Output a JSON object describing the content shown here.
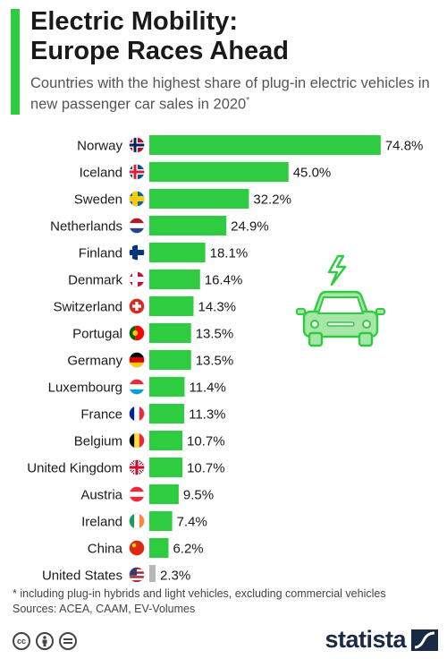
{
  "header": {
    "title_line1": "Electric Mobility:",
    "title_line2": "Europe Races Ahead",
    "subtitle": "Countries with the highest share of plug-in electric vehicles in new passenger car sales in 2020",
    "subtitle_mark": "*"
  },
  "colors": {
    "accent": "#2ecc40",
    "bar": "#2ecc40",
    "bar_highlight": "#b7b7b7",
    "brand": "#1a2a44",
    "car_fill": "#a8e6a8"
  },
  "chart_data": {
    "type": "bar",
    "orientation": "horizontal",
    "value_suffix": "%",
    "categories": [
      "Norway",
      "Iceland",
      "Sweden",
      "Netherlands",
      "Finland",
      "Denmark",
      "Switzerland",
      "Portugal",
      "Germany",
      "Luxembourg",
      "France",
      "Belgium",
      "United Kingdom",
      "Austria",
      "Ireland",
      "China",
      "United States"
    ],
    "values": [
      74.8,
      45.0,
      32.2,
      24.9,
      18.1,
      16.4,
      14.3,
      13.5,
      13.5,
      11.4,
      11.3,
      10.7,
      10.7,
      9.5,
      7.4,
      6.2,
      2.3
    ],
    "value_labels": [
      "74.8%",
      "45.0%",
      "32.2%",
      "24.9%",
      "18.1%",
      "16.4%",
      "14.3%",
      "13.5%",
      "13.5%",
      "11.4%",
      "11.3%",
      "10.7%",
      "10.7%",
      "9.5%",
      "7.4%",
      "6.2%",
      "2.3%"
    ],
    "flags": [
      "flag-norway-icon",
      "flag-iceland-icon",
      "flag-sweden-icon",
      "flag-netherlands-icon",
      "flag-finland-icon",
      "flag-denmark-icon",
      "flag-switzerland-icon",
      "flag-portugal-icon",
      "flag-germany-icon",
      "flag-luxembourg-icon",
      "flag-france-icon",
      "flag-belgium-icon",
      "flag-united-kingdom-icon",
      "flag-austria-icon",
      "flag-ireland-icon",
      "flag-china-icon",
      "flag-united-states-icon"
    ],
    "highlight_category": "United States",
    "xlim": [
      0,
      80
    ],
    "grid": false,
    "legend": "none"
  },
  "footer": {
    "footnote": "* including plug-in hybrids and light vehicles, excluding commercial vehicles",
    "sources": "Sources: ACEA, CAAM, EV-Volumes",
    "brand": "statista",
    "license_icons": [
      "cc-icon",
      "by-icon",
      "nd-icon"
    ]
  },
  "decor": {
    "illustration": "electric-car-icon"
  }
}
